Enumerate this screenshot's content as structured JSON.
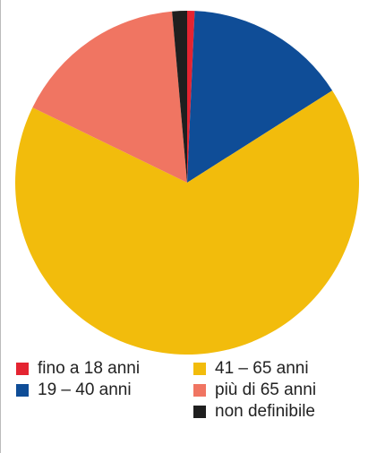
{
  "chart_data": {
    "type": "pie",
    "categories": [
      "fino a 18 anni",
      "19 – 40 anni",
      "41 – 65 anni",
      "più di 65 anni",
      "non definibile"
    ],
    "values": [
      0.7,
      15.3,
      66.2,
      16.4,
      1.4
    ],
    "colors": [
      "#e42431",
      "#0f4d97",
      "#f2bc0c",
      "#f07562",
      "#1f1f1f"
    ]
  }
}
